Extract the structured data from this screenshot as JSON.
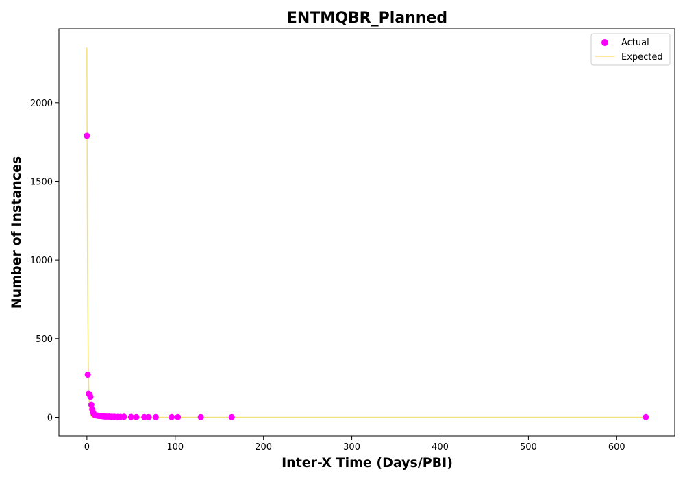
{
  "chart_data": {
    "type": "scatter",
    "title": "ENTMQBR_Planned",
    "xlabel": "Inter-X Time (Days/PBI)",
    "ylabel": "Number of Instances",
    "xlim": [
      -31.7,
      665.7
    ],
    "ylim": [
      -120,
      2470
    ],
    "x_ticks": [
      0,
      100,
      200,
      300,
      400,
      500,
      600
    ],
    "y_ticks": [
      0,
      500,
      1000,
      1500,
      2000
    ],
    "grid": false,
    "legend": "top-right",
    "series": [
      {
        "name": "Actual",
        "kind": "scatter",
        "color": "#ff00ff",
        "x": [
          0,
          1,
          2,
          3,
          4,
          5,
          6,
          7,
          8,
          9,
          10,
          12,
          14,
          16,
          18,
          20,
          22,
          25,
          28,
          31,
          35,
          38,
          42,
          50,
          56,
          65,
          70,
          78,
          96,
          103,
          129,
          164,
          633
        ],
        "y": [
          1790,
          270,
          150,
          145,
          130,
          80,
          50,
          30,
          20,
          15,
          12,
          10,
          8,
          8,
          6,
          5,
          4,
          4,
          3,
          3,
          2,
          2,
          3,
          2,
          1,
          1,
          1,
          1,
          1,
          1,
          1,
          1,
          1
        ]
      },
      {
        "name": "Expected",
        "kind": "line",
        "color": "#f5e17a",
        "x": [
          0,
          0.25,
          0.5,
          0.75,
          1,
          1.5,
          2,
          2.5,
          3,
          4,
          5,
          6,
          7,
          8,
          10,
          12,
          15,
          20,
          30,
          50,
          100,
          200,
          400,
          633
        ],
        "y": [
          2350,
          1740,
          1290,
          955,
          707,
          388,
          213,
          117,
          64,
          19,
          6,
          2,
          0.5,
          0.1,
          0,
          0,
          0,
          0,
          0,
          0,
          0,
          0,
          0,
          0
        ]
      }
    ]
  }
}
